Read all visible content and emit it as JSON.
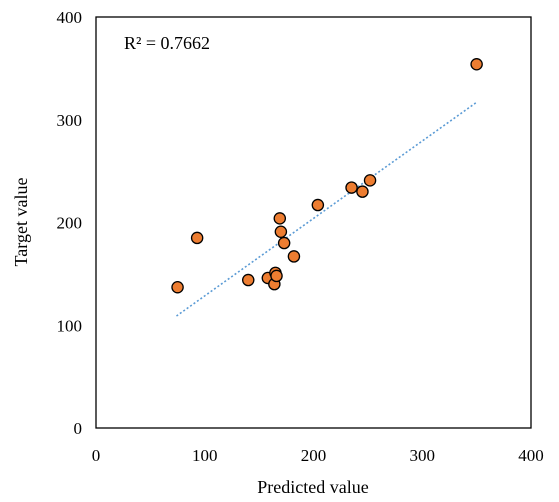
{
  "chart_data": {
    "type": "scatter",
    "xlabel": "Predicted value",
    "ylabel": "Target value",
    "xlim": [
      0,
      400
    ],
    "ylim": [
      0,
      400
    ],
    "x_ticks": [
      "0",
      "100",
      "200",
      "300",
      "400"
    ],
    "y_ticks": [
      "0",
      "100",
      "200",
      "300",
      "400"
    ],
    "annotation": "R² = 0.7662",
    "grid": false,
    "legend": "none",
    "series": [
      {
        "points": [
          {
            "x": 75,
            "y": 137
          },
          {
            "x": 93,
            "y": 185
          },
          {
            "x": 140,
            "y": 144
          },
          {
            "x": 158,
            "y": 146
          },
          {
            "x": 164,
            "y": 140
          },
          {
            "x": 165,
            "y": 151
          },
          {
            "x": 166,
            "y": 148
          },
          {
            "x": 169,
            "y": 204
          },
          {
            "x": 170,
            "y": 191
          },
          {
            "x": 173,
            "y": 180
          },
          {
            "x": 182,
            "y": 167
          },
          {
            "x": 204,
            "y": 217
          },
          {
            "x": 235,
            "y": 234
          },
          {
            "x": 245,
            "y": 230
          },
          {
            "x": 252,
            "y": 241
          },
          {
            "x": 350,
            "y": 354
          }
        ]
      }
    ],
    "trendline": {
      "style": "dotted",
      "x_start": 74,
      "y_start": 109,
      "x_end": 350,
      "y_end": 317
    },
    "colors": {
      "marker_fill": "#ED7D31",
      "marker_stroke": "#000000",
      "trendline": "#5B9BD5",
      "axis": "#000000"
    }
  }
}
